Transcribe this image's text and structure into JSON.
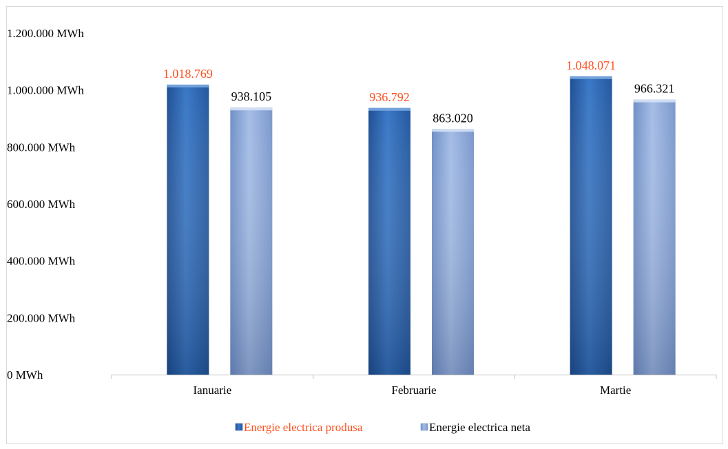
{
  "chart_data": {
    "type": "bar",
    "categories": [
      "Ianuarie",
      "Februarie",
      "Martie"
    ],
    "series": [
      {
        "name": "Energie electrica produsa",
        "values": [
          1018769,
          936792,
          1048071
        ],
        "value_labels": [
          "1.018.769",
          "936.792",
          "1.048.071"
        ],
        "color": "#2e6ab8",
        "label_color": "#ff4f1f"
      },
      {
        "name": "Energie electrica neta",
        "values": [
          938105,
          863020,
          966321
        ],
        "value_labels": [
          "938.105",
          "863.020",
          "966.321"
        ],
        "color": "#8ea9db",
        "label_color": "#000000"
      }
    ],
    "y_ticks": [
      0,
      200000,
      400000,
      600000,
      800000,
      1000000,
      1200000
    ],
    "y_tick_labels": [
      "0 MWh",
      "200.000 MWh",
      "400.000 MWh",
      "600.000 MWh",
      "800.000 MWh",
      "1.000.000 MWh",
      "1.200.000 MWh"
    ],
    "ylim": [
      0,
      1200000
    ],
    "grid": false,
    "legend_position": "bottom"
  }
}
